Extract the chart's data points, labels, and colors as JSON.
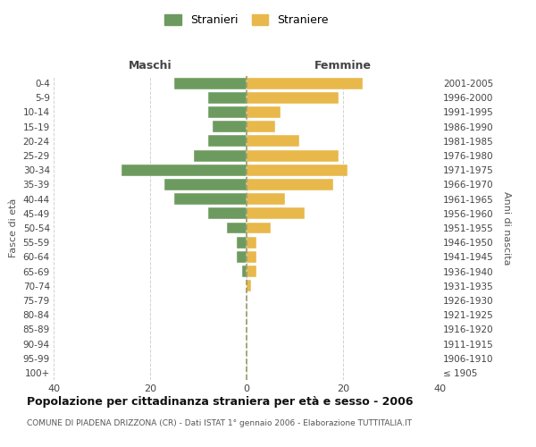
{
  "age_groups": [
    "100+",
    "95-99",
    "90-94",
    "85-89",
    "80-84",
    "75-79",
    "70-74",
    "65-69",
    "60-64",
    "55-59",
    "50-54",
    "45-49",
    "40-44",
    "35-39",
    "30-34",
    "25-29",
    "20-24",
    "15-19",
    "10-14",
    "5-9",
    "0-4"
  ],
  "birth_years": [
    "≤ 1905",
    "1906-1910",
    "1911-1915",
    "1916-1920",
    "1921-1925",
    "1926-1930",
    "1931-1935",
    "1936-1940",
    "1941-1945",
    "1946-1950",
    "1951-1955",
    "1956-1960",
    "1961-1965",
    "1966-1970",
    "1971-1975",
    "1976-1980",
    "1981-1985",
    "1986-1990",
    "1991-1995",
    "1996-2000",
    "2001-2005"
  ],
  "maschi": [
    0,
    0,
    0,
    0,
    0,
    0,
    0,
    1,
    2,
    2,
    4,
    8,
    15,
    17,
    26,
    11,
    8,
    7,
    8,
    8,
    15
  ],
  "femmine": [
    0,
    0,
    0,
    0,
    0,
    0,
    1,
    2,
    2,
    2,
    5,
    12,
    8,
    18,
    21,
    19,
    11,
    6,
    7,
    19,
    24
  ],
  "maschi_color": "#6d9b5f",
  "femmine_color": "#e8b84b",
  "background_color": "#ffffff",
  "grid_color": "#cccccc",
  "title": "Popolazione per cittadinanza straniera per età e sesso - 2006",
  "subtitle": "COMUNE DI PIADENA DRIZZONA (CR) - Dati ISTAT 1° gennaio 2006 - Elaborazione TUTTITALIA.IT",
  "xlabel_left": "Maschi",
  "xlabel_right": "Femmine",
  "ylabel_left": "Fasce di età",
  "ylabel_right": "Anni di nascita",
  "legend_maschi": "Stranieri",
  "legend_femmine": "Straniere",
  "xlim": 40,
  "center_line_color": "#999966"
}
